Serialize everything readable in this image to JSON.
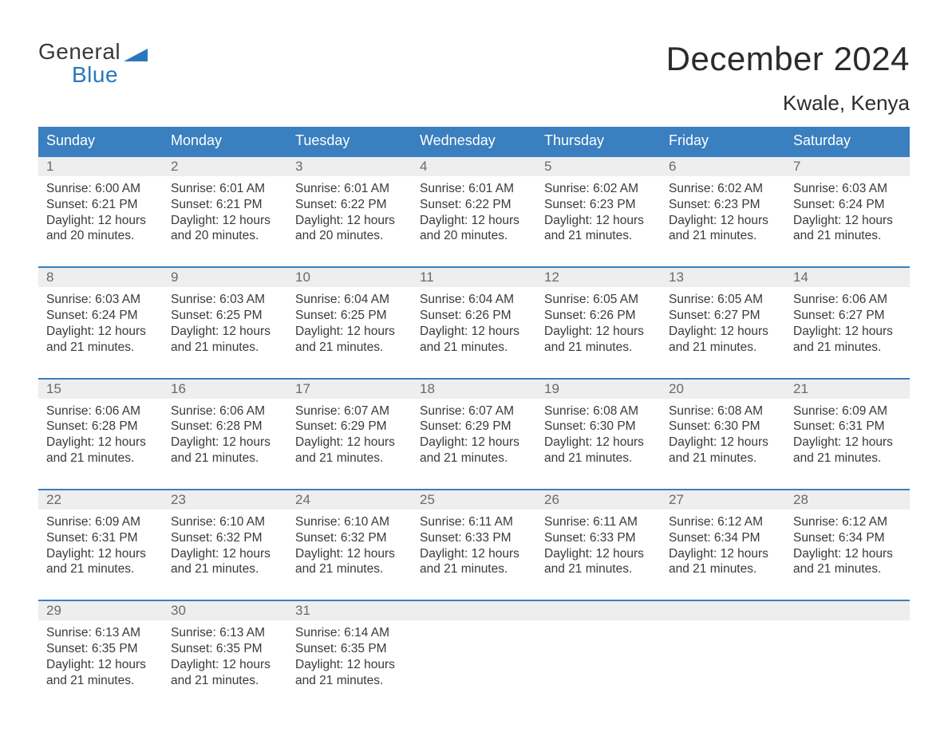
{
  "logo": {
    "text1": "General",
    "text2": "Blue",
    "flag_color": "#2a77bd"
  },
  "header": {
    "month_title": "December 2024",
    "location": "Kwale, Kenya"
  },
  "colors": {
    "header_bg": "#3a7fbf",
    "header_text": "#ffffff",
    "daynum_bg": "#eeeeee",
    "daynum_text": "#6a6a6a",
    "body_text": "#3a3a3a",
    "week_border": "#3a7fbf",
    "background": "#ffffff"
  },
  "day_names": [
    "Sunday",
    "Monday",
    "Tuesday",
    "Wednesday",
    "Thursday",
    "Friday",
    "Saturday"
  ],
  "weeks": [
    [
      {
        "n": "1",
        "sr": "6:00 AM",
        "ss": "6:21 PM",
        "dl": "12 hours and 20 minutes."
      },
      {
        "n": "2",
        "sr": "6:01 AM",
        "ss": "6:21 PM",
        "dl": "12 hours and 20 minutes."
      },
      {
        "n": "3",
        "sr": "6:01 AM",
        "ss": "6:22 PM",
        "dl": "12 hours and 20 minutes."
      },
      {
        "n": "4",
        "sr": "6:01 AM",
        "ss": "6:22 PM",
        "dl": "12 hours and 20 minutes."
      },
      {
        "n": "5",
        "sr": "6:02 AM",
        "ss": "6:23 PM",
        "dl": "12 hours and 21 minutes."
      },
      {
        "n": "6",
        "sr": "6:02 AM",
        "ss": "6:23 PM",
        "dl": "12 hours and 21 minutes."
      },
      {
        "n": "7",
        "sr": "6:03 AM",
        "ss": "6:24 PM",
        "dl": "12 hours and 21 minutes."
      }
    ],
    [
      {
        "n": "8",
        "sr": "6:03 AM",
        "ss": "6:24 PM",
        "dl": "12 hours and 21 minutes."
      },
      {
        "n": "9",
        "sr": "6:03 AM",
        "ss": "6:25 PM",
        "dl": "12 hours and 21 minutes."
      },
      {
        "n": "10",
        "sr": "6:04 AM",
        "ss": "6:25 PM",
        "dl": "12 hours and 21 minutes."
      },
      {
        "n": "11",
        "sr": "6:04 AM",
        "ss": "6:26 PM",
        "dl": "12 hours and 21 minutes."
      },
      {
        "n": "12",
        "sr": "6:05 AM",
        "ss": "6:26 PM",
        "dl": "12 hours and 21 minutes."
      },
      {
        "n": "13",
        "sr": "6:05 AM",
        "ss": "6:27 PM",
        "dl": "12 hours and 21 minutes."
      },
      {
        "n": "14",
        "sr": "6:06 AM",
        "ss": "6:27 PM",
        "dl": "12 hours and 21 minutes."
      }
    ],
    [
      {
        "n": "15",
        "sr": "6:06 AM",
        "ss": "6:28 PM",
        "dl": "12 hours and 21 minutes."
      },
      {
        "n": "16",
        "sr": "6:06 AM",
        "ss": "6:28 PM",
        "dl": "12 hours and 21 minutes."
      },
      {
        "n": "17",
        "sr": "6:07 AM",
        "ss": "6:29 PM",
        "dl": "12 hours and 21 minutes."
      },
      {
        "n": "18",
        "sr": "6:07 AM",
        "ss": "6:29 PM",
        "dl": "12 hours and 21 minutes."
      },
      {
        "n": "19",
        "sr": "6:08 AM",
        "ss": "6:30 PM",
        "dl": "12 hours and 21 minutes."
      },
      {
        "n": "20",
        "sr": "6:08 AM",
        "ss": "6:30 PM",
        "dl": "12 hours and 21 minutes."
      },
      {
        "n": "21",
        "sr": "6:09 AM",
        "ss": "6:31 PM",
        "dl": "12 hours and 21 minutes."
      }
    ],
    [
      {
        "n": "22",
        "sr": "6:09 AM",
        "ss": "6:31 PM",
        "dl": "12 hours and 21 minutes."
      },
      {
        "n": "23",
        "sr": "6:10 AM",
        "ss": "6:32 PM",
        "dl": "12 hours and 21 minutes."
      },
      {
        "n": "24",
        "sr": "6:10 AM",
        "ss": "6:32 PM",
        "dl": "12 hours and 21 minutes."
      },
      {
        "n": "25",
        "sr": "6:11 AM",
        "ss": "6:33 PM",
        "dl": "12 hours and 21 minutes."
      },
      {
        "n": "26",
        "sr": "6:11 AM",
        "ss": "6:33 PM",
        "dl": "12 hours and 21 minutes."
      },
      {
        "n": "27",
        "sr": "6:12 AM",
        "ss": "6:34 PM",
        "dl": "12 hours and 21 minutes."
      },
      {
        "n": "28",
        "sr": "6:12 AM",
        "ss": "6:34 PM",
        "dl": "12 hours and 21 minutes."
      }
    ],
    [
      {
        "n": "29",
        "sr": "6:13 AM",
        "ss": "6:35 PM",
        "dl": "12 hours and 21 minutes."
      },
      {
        "n": "30",
        "sr": "6:13 AM",
        "ss": "6:35 PM",
        "dl": "12 hours and 21 minutes."
      },
      {
        "n": "31",
        "sr": "6:14 AM",
        "ss": "6:35 PM",
        "dl": "12 hours and 21 minutes."
      },
      null,
      null,
      null,
      null
    ]
  ],
  "labels": {
    "sunrise": "Sunrise:",
    "sunset": "Sunset:",
    "daylight": "Daylight:"
  }
}
